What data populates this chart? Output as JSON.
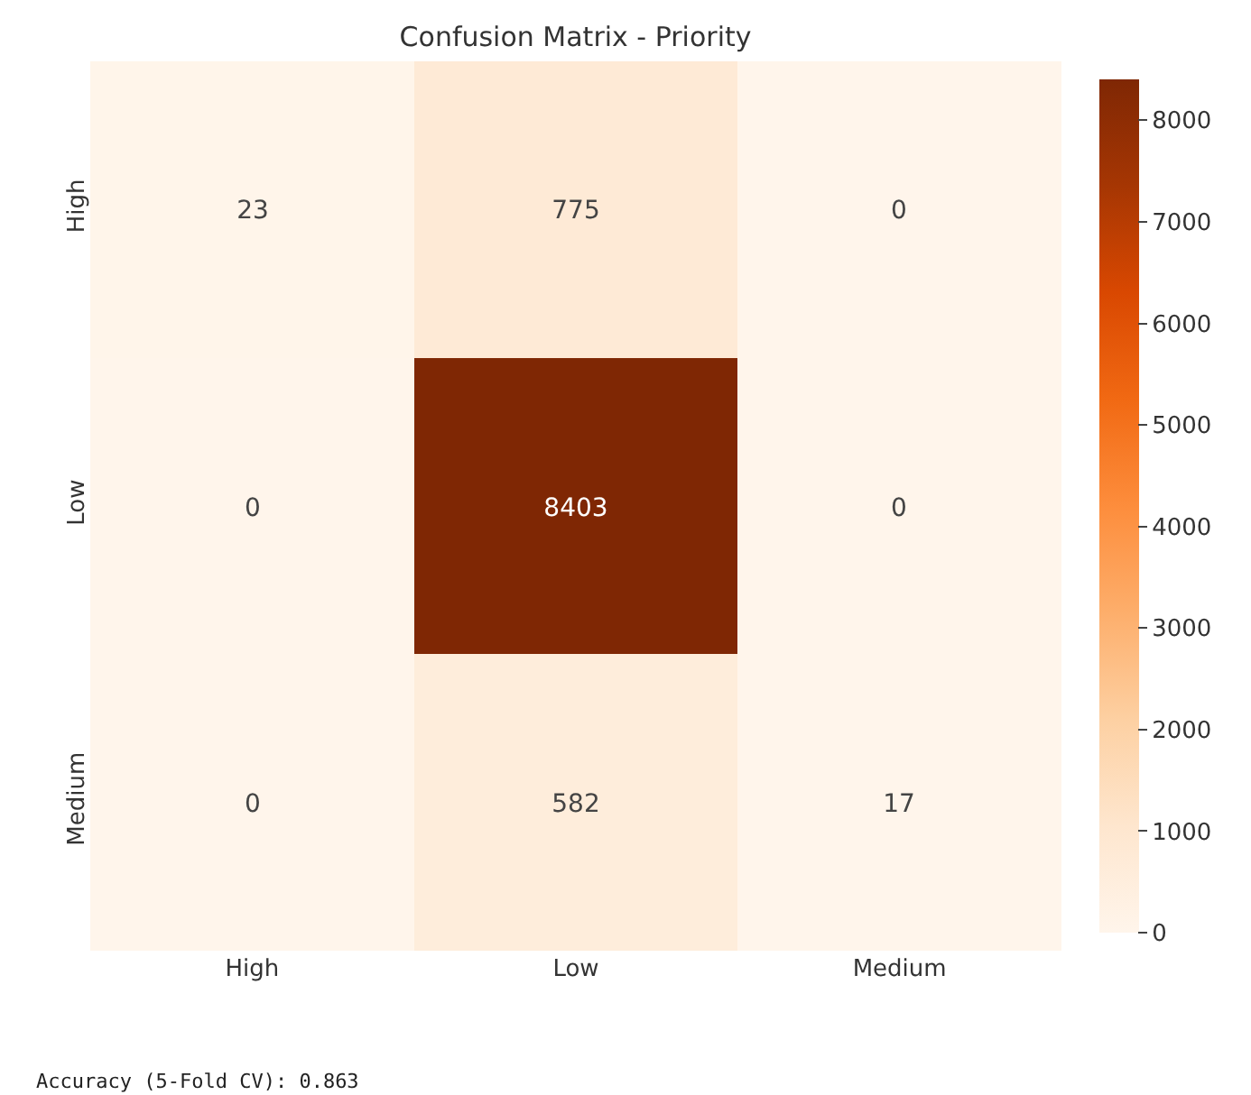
{
  "chart_data": {
    "type": "heatmap",
    "title": "Confusion Matrix - Priority",
    "categories": [
      "High",
      "Low",
      "Medium"
    ],
    "y_categories": [
      "High",
      "Low",
      "Medium"
    ],
    "cells": [
      [
        23,
        775,
        0
      ],
      [
        0,
        8403,
        0
      ],
      [
        0,
        582,
        17
      ]
    ],
    "data_labels": true,
    "clim": [
      0,
      8403
    ],
    "cticks": [
      0,
      1000,
      2000,
      3000,
      4000,
      5000,
      6000,
      7000,
      8000
    ],
    "annotations": [
      "Accuracy (5-Fold CV): 0.863"
    ]
  }
}
